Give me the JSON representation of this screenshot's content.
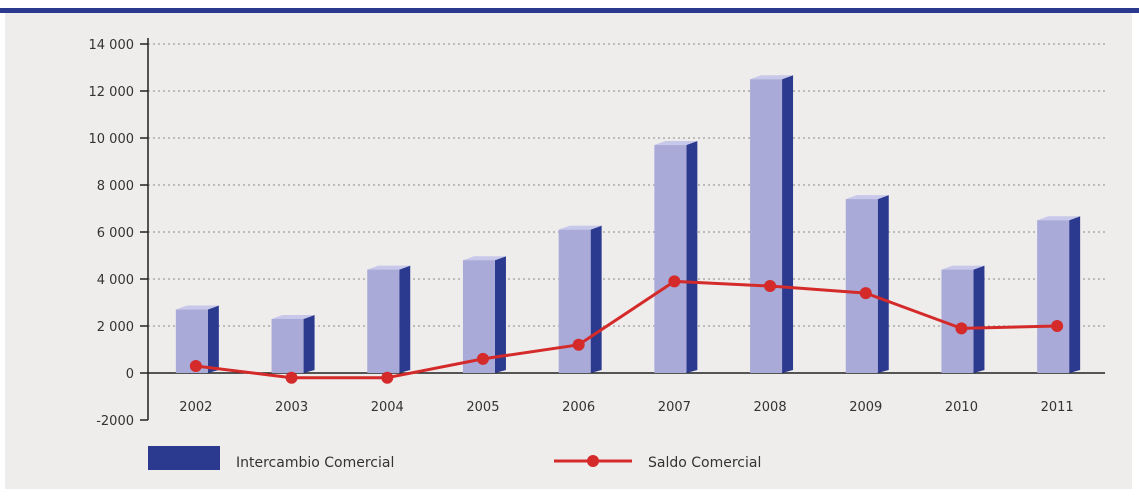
{
  "chart_data": {
    "type": "bar",
    "categories": [
      "2002",
      "2003",
      "2004",
      "2005",
      "2006",
      "2007",
      "2008",
      "2009",
      "2010",
      "2011"
    ],
    "series": [
      {
        "name": "Intercambio Comercial",
        "type": "bar",
        "color": "#2b3a8f",
        "values": [
          2700,
          2300,
          4400,
          4800,
          6100,
          9700,
          12500,
          7400,
          4400,
          6500
        ]
      },
      {
        "name": "Saldo Comercial",
        "type": "line",
        "color": "#d42a2a",
        "values": [
          300,
          -200,
          -200,
          600,
          1200,
          3900,
          3700,
          3400,
          1900,
          2000
        ]
      }
    ],
    "yticks": [
      "14 000",
      "12 000",
      "10 000",
      "8 000",
      "6 000",
      "4 000",
      "2 000",
      "0",
      "-2000"
    ],
    "ylim": [
      -2000,
      14000
    ],
    "grid": true,
    "legend_position": "bottom"
  },
  "colors": {
    "background": "#efedec",
    "top_rule": "#2b3a8f",
    "bar_front": "#a9aad8",
    "bar_side": "#2b3a8f",
    "line": "#d42a2a",
    "grid": "#8a8a8a",
    "text": "#333333"
  }
}
